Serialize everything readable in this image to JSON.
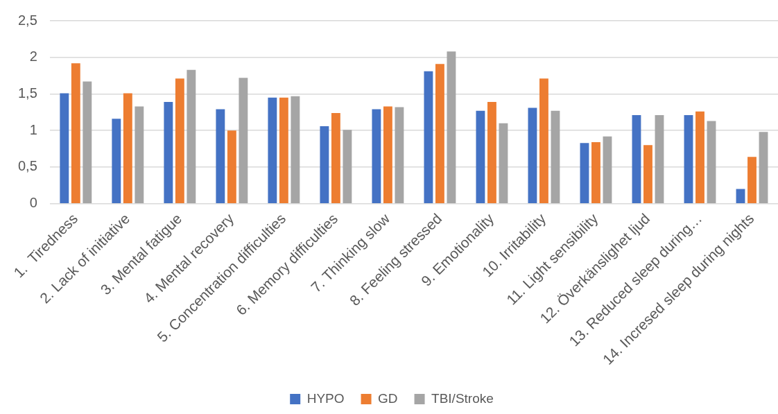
{
  "chart_data": {
    "type": "bar",
    "categories": [
      "1.  Tiredness",
      "2. Lack of initiative",
      "3. Mental fatigue",
      "4. Mental recovery",
      "5. Concentration difficulties",
      "6. Memory difficulties",
      "7. Thinking slow",
      "8. Feeling stressed",
      "9. Emotionality",
      "10. Irritability",
      "11. Light sensibility",
      "12. Överkänslighet ljud",
      "13. Reduced sleep during…",
      "14. Incresed sleep during nights"
    ],
    "series": [
      {
        "name": "HYPO",
        "color": "#4472c4",
        "values": [
          1.51,
          1.16,
          1.39,
          1.29,
          1.45,
          1.06,
          1.29,
          1.81,
          1.27,
          1.31,
          0.83,
          1.21,
          1.21,
          0.2
        ]
      },
      {
        "name": "GD",
        "color": "#ed7d31",
        "values": [
          1.92,
          1.51,
          1.71,
          1.0,
          1.45,
          1.24,
          1.33,
          1.91,
          1.39,
          1.71,
          0.84,
          0.8,
          1.26,
          0.64
        ]
      },
      {
        "name": "TBI/Stroke",
        "color": "#a5a5a5",
        "values": [
          1.67,
          1.33,
          1.83,
          1.72,
          1.47,
          1.01,
          1.32,
          2.08,
          1.1,
          1.27,
          0.92,
          1.21,
          1.13,
          0.98
        ]
      }
    ],
    "ylim": [
      0,
      2.5
    ],
    "yticks": [
      0,
      {
        "value": 0.5,
        "label": "0,5"
      },
      1,
      {
        "value": 1.5,
        "label": "1,5"
      },
      2,
      {
        "value": 2.5,
        "label": "2,5"
      }
    ],
    "grid": "y",
    "legend": "bottom"
  }
}
